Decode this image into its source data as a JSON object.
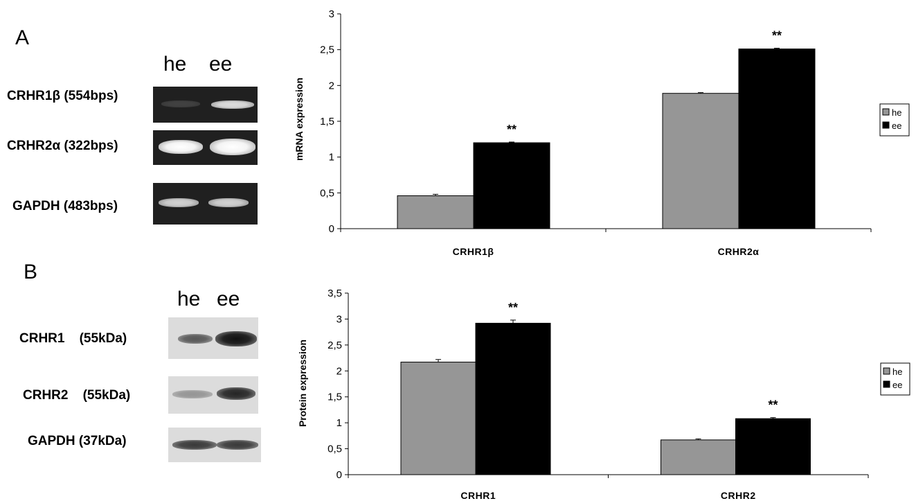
{
  "panels": {
    "A": {
      "letter": "A",
      "lanes": [
        "he",
        "ee"
      ],
      "blots": [
        {
          "label": "CRHR1β (554bps)",
          "intensity": [
            0.15,
            0.85
          ]
        },
        {
          "label": "CRHR2α (322bps)",
          "intensity": [
            1.0,
            1.0
          ]
        },
        {
          "label": "GAPDH (483bps)",
          "intensity": [
            0.8,
            0.8
          ]
        }
      ]
    },
    "B": {
      "letter": "B",
      "lanes": [
        "he",
        "ee"
      ],
      "blots": [
        {
          "label": "CRHR1    (55kDa)",
          "intensity": [
            0.65,
            1.0
          ]
        },
        {
          "label": "CRHR2    (55kDa)",
          "intensity": [
            0.35,
            0.9
          ]
        },
        {
          "label": "GAPDH (37kDa)",
          "intensity": [
            0.8,
            0.8
          ]
        }
      ]
    }
  },
  "colors": {
    "he": "#969696",
    "ee": "#000000"
  },
  "chart_data": [
    {
      "type": "bar",
      "ylabel": "mRNA expression",
      "categories": [
        "CRHR1β",
        "CRHR2α"
      ],
      "ylim": [
        0,
        3
      ],
      "yticks": [
        "0",
        "0,5",
        "1",
        "1,5",
        "2",
        "2,5",
        "3"
      ],
      "series": [
        {
          "name": "he",
          "values": [
            0.46,
            1.89
          ],
          "errors": [
            0.02,
            0.01
          ]
        },
        {
          "name": "ee",
          "values": [
            1.2,
            2.51
          ],
          "errors": [
            0.01,
            0.01
          ]
        }
      ],
      "annotations": [
        {
          "category": "CRHR1β",
          "text": "**"
        },
        {
          "category": "CRHR2α",
          "text": "**"
        }
      ],
      "legend": "right"
    },
    {
      "type": "bar",
      "ylabel": "Protein expression",
      "categories": [
        "CRHR1",
        "CRHR2"
      ],
      "ylim": [
        0,
        3.5
      ],
      "yticks": [
        "0",
        "0,5",
        "1",
        "1,5",
        "2",
        "2,5",
        "3",
        "3,5"
      ],
      "series": [
        {
          "name": "he",
          "values": [
            2.17,
            0.67
          ],
          "errors": [
            0.05,
            0.02
          ]
        },
        {
          "name": "ee",
          "values": [
            2.92,
            1.08
          ],
          "errors": [
            0.06,
            0.02
          ]
        }
      ],
      "annotations": [
        {
          "category": "CRHR1",
          "text": "**"
        },
        {
          "category": "CRHR2",
          "text": "**"
        }
      ],
      "legend": "right"
    }
  ]
}
